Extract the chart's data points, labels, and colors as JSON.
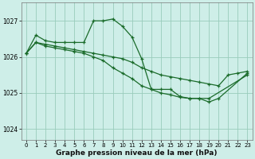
{
  "background_color": "#ceeee8",
  "grid_color": "#99ccbb",
  "line_color": "#1a6b2a",
  "marker": "+",
  "markersize": 3,
  "linewidth": 0.9,
  "xlabel": "Graphe pression niveau de la mer (hPa)",
  "xlabel_fontsize": 6.5,
  "xlim": [
    -0.5,
    23.5
  ],
  "ylim": [
    1023.7,
    1027.5
  ],
  "yticks": [
    1024,
    1025,
    1026,
    1027
  ],
  "xticks": [
    0,
    1,
    2,
    3,
    4,
    5,
    6,
    7,
    8,
    9,
    10,
    11,
    12,
    13,
    14,
    15,
    16,
    17,
    18,
    19,
    20,
    21,
    22,
    23
  ],
  "tick_fontsize": 5.5,
  "series1_x": [
    0,
    1,
    2,
    3,
    4,
    5,
    6,
    7,
    8,
    9,
    10,
    11,
    12,
    13,
    14,
    15,
    16,
    17,
    18,
    19,
    23
  ],
  "series1_y": [
    1026.1,
    1026.6,
    1026.45,
    1026.4,
    1026.4,
    1026.4,
    1026.4,
    1027.0,
    1027.0,
    1027.05,
    1026.85,
    1026.55,
    1025.95,
    1025.1,
    1025.1,
    1025.1,
    1024.9,
    1024.85,
    1024.85,
    1024.85,
    1025.5
  ],
  "series2_x": [
    0,
    1,
    2,
    3,
    4,
    5,
    6,
    7,
    8,
    9,
    10,
    11,
    12,
    13,
    14,
    15,
    16,
    17,
    18,
    19,
    20,
    21,
    22,
    23
  ],
  "series2_y": [
    1026.1,
    1026.4,
    1026.35,
    1026.3,
    1026.25,
    1026.2,
    1026.15,
    1026.1,
    1026.05,
    1026.0,
    1025.95,
    1025.85,
    1025.7,
    1025.6,
    1025.5,
    1025.45,
    1025.4,
    1025.35,
    1025.3,
    1025.25,
    1025.2,
    1025.5,
    1025.55,
    1025.6
  ],
  "series3_x": [
    0,
    1,
    2,
    3,
    4,
    5,
    6,
    7,
    8,
    9,
    10,
    11,
    12,
    13,
    14,
    15,
    16,
    17,
    18,
    19,
    20,
    23
  ],
  "series3_y": [
    1026.1,
    1026.4,
    1026.3,
    1026.25,
    1026.2,
    1026.15,
    1026.1,
    1026.0,
    1025.9,
    1025.7,
    1025.55,
    1025.4,
    1025.2,
    1025.1,
    1025.0,
    1024.95,
    1024.88,
    1024.85,
    1024.85,
    1024.75,
    1024.85,
    1025.55
  ]
}
